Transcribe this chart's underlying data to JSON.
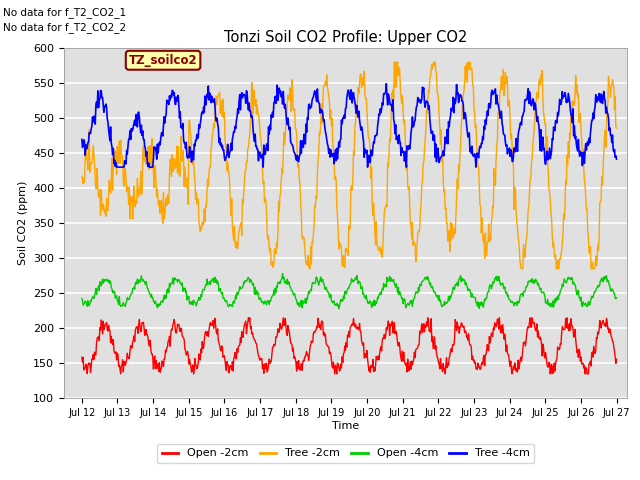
{
  "title": "Tonzi Soil CO2 Profile: Upper CO2",
  "ylabel": "Soil CO2 (ppm)",
  "xlabel": "Time",
  "ylim": [
    100,
    600
  ],
  "yticks": [
    100,
    150,
    200,
    250,
    300,
    350,
    400,
    450,
    500,
    550,
    600
  ],
  "xlim_start": 11.5,
  "xlim_end": 27.3,
  "xtick_labels": [
    "Jul 12",
    "Jul 13",
    "Jul 14",
    "Jul 15",
    "Jul 16",
    "Jul 17",
    "Jul 18",
    "Jul 19",
    "Jul 20",
    "Jul 21",
    "Jul 22",
    "Jul 23",
    "Jul 24",
    "Jul 25",
    "Jul 26",
    "Jul 27"
  ],
  "xtick_positions": [
    12,
    13,
    14,
    15,
    16,
    17,
    18,
    19,
    20,
    21,
    22,
    23,
    24,
    25,
    26,
    27
  ],
  "legend_labels": [
    "Open -2cm",
    "Tree -2cm",
    "Open -4cm",
    "Tree -4cm"
  ],
  "legend_colors": [
    "#ff0000",
    "#ffa500",
    "#00cc00",
    "#0000ff"
  ],
  "annotations": [
    "No data for f_T2_CO2_1",
    "No data for f_T2_CO2_2"
  ],
  "box_label": "TZ_soilco2",
  "background_color": "#e0e0e0",
  "grid_color": "#ffffff",
  "fig_facecolor": "#ffffff"
}
